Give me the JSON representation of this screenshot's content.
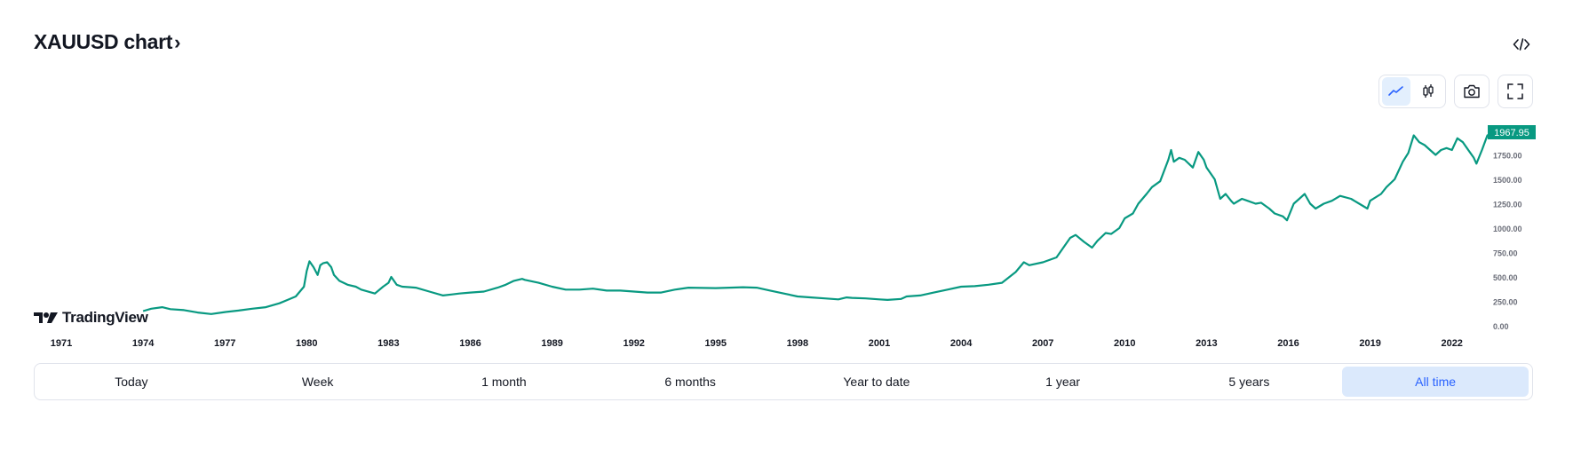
{
  "header": {
    "title": "XAUUSD chart",
    "chevron": "›"
  },
  "toolbar": {
    "embed_icon": "code-icon",
    "chart_type_icons": [
      "line-chart-icon",
      "candlestick-icon"
    ],
    "snapshot_icon": "camera-icon",
    "fullscreen_icon": "fullscreen-icon",
    "active_chart_type": "line"
  },
  "branding": {
    "logo_text": "TradingView"
  },
  "ranges": {
    "items": [
      "Today",
      "Week",
      "1 month",
      "6 months",
      "Year to date",
      "1 year",
      "5 years",
      "All time"
    ],
    "active": "All time"
  },
  "colors": {
    "line": "#089981",
    "price_label_bg": "#089981",
    "accent": "#2962ff",
    "active_bg": "#dbe9fc"
  },
  "chart_data": {
    "type": "line",
    "title": "",
    "xlabel": "",
    "ylabel": "",
    "x_tick_labels": [
      "1971",
      "1974",
      "1977",
      "1980",
      "1983",
      "1986",
      "1989",
      "1992",
      "1995",
      "1998",
      "2001",
      "2004",
      "2007",
      "2010",
      "2013",
      "2016",
      "2019",
      "2022"
    ],
    "y_tick_labels": [
      "0.00",
      "250.00",
      "500.00",
      "750.00",
      "1000.00",
      "1250.00",
      "1500.00",
      "1750.00"
    ],
    "ylim": [
      0,
      2000
    ],
    "last_price_label": "1967.95",
    "series": [
      {
        "x": [
          1974.0,
          1974.3,
          1974.7,
          1975.0,
          1975.5,
          1976.0,
          1976.5,
          1977.0,
          1977.5,
          1978.0,
          1978.5,
          1979.0,
          1979.3,
          1979.6,
          1979.9,
          1980.0,
          1980.1,
          1980.25,
          1980.4,
          1980.5,
          1980.6,
          1980.75,
          1980.9,
          1981.0,
          1981.2,
          1981.5,
          1981.8,
          1982.0,
          1982.5,
          1982.8,
          1983.0,
          1983.1,
          1983.3,
          1983.5,
          1983.8,
          1984.0,
          1984.5,
          1985.0,
          1985.3,
          1985.6,
          1986.0,
          1986.5,
          1987.0,
          1987.3,
          1987.6,
          1987.9,
          1988.0,
          1988.5,
          1989.0,
          1989.5,
          1990.0,
          1990.5,
          1991.0,
          1991.5,
          1992.0,
          1992.5,
          1993.0,
          1993.5,
          1994.0,
          1995.0,
          1996.0,
          1996.5,
          1997.0,
          1997.5,
          1998.0,
          1998.5,
          1999.0,
          1999.5,
          1999.8,
          2000.0,
          2000.5,
          2001.0,
          2001.3,
          2001.8,
          2002.0,
          2002.5,
          2003.0,
          2003.5,
          2004.0,
          2004.5,
          2005.0,
          2005.5,
          2006.0,
          2006.3,
          2006.5,
          2007.0,
          2007.5,
          2008.0,
          2008.2,
          2008.5,
          2008.8,
          2009.0,
          2009.3,
          2009.5,
          2009.8,
          2010.0,
          2010.3,
          2010.5,
          2010.8,
          2011.0,
          2011.3,
          2011.6,
          2011.7,
          2011.8,
          2012.0,
          2012.2,
          2012.5,
          2012.7,
          2012.9,
          2013.0,
          2013.3,
          2013.5,
          2013.7,
          2013.9,
          2014.0,
          2014.3,
          2014.5,
          2014.8,
          2015.0,
          2015.3,
          2015.5,
          2015.8,
          2015.95,
          2016.2,
          2016.4,
          2016.6,
          2016.8,
          2017.0,
          2017.3,
          2017.6,
          2017.9,
          2018.3,
          2018.6,
          2018.9,
          2019.0,
          2019.4,
          2019.6,
          2019.9,
          2020.0,
          2020.2,
          2020.4,
          2020.6,
          2020.8,
          2021.0,
          2021.2,
          2021.4,
          2021.6,
          2021.8,
          2022.0,
          2022.2,
          2022.4,
          2022.6,
          2022.8,
          2022.9,
          2023.1,
          2023.3,
          2023.45
        ],
        "values": [
          150,
          175,
          190,
          170,
          160,
          135,
          120,
          140,
          155,
          175,
          190,
          230,
          265,
          300,
          400,
          560,
          660,
          600,
          520,
          620,
          640,
          650,
          600,
          520,
          460,
          420,
          400,
          370,
          330,
          400,
          440,
          500,
          420,
          400,
          395,
          390,
          350,
          310,
          320,
          330,
          340,
          350,
          390,
          420,
          460,
          480,
          470,
          440,
          400,
          370,
          370,
          380,
          360,
          360,
          350,
          340,
          340,
          370,
          390,
          385,
          395,
          390,
          360,
          330,
          300,
          290,
          280,
          270,
          290,
          285,
          280,
          270,
          265,
          275,
          300,
          310,
          340,
          370,
          400,
          405,
          420,
          440,
          550,
          650,
          620,
          650,
          700,
          900,
          930,
          860,
          800,
          870,
          950,
          940,
          1000,
          1100,
          1150,
          1250,
          1350,
          1420,
          1480,
          1700,
          1800,
          1680,
          1720,
          1700,
          1620,
          1780,
          1700,
          1620,
          1500,
          1300,
          1350,
          1280,
          1250,
          1300,
          1280,
          1250,
          1260,
          1200,
          1150,
          1120,
          1080,
          1250,
          1300,
          1350,
          1250,
          1200,
          1250,
          1280,
          1330,
          1300,
          1250,
          1200,
          1280,
          1350,
          1420,
          1500,
          1560,
          1680,
          1770,
          1950,
          1880,
          1850,
          1800,
          1750,
          1800,
          1820,
          1800,
          1920,
          1880,
          1800,
          1720,
          1660,
          1800,
          1950,
          1967.95
        ]
      }
    ]
  }
}
